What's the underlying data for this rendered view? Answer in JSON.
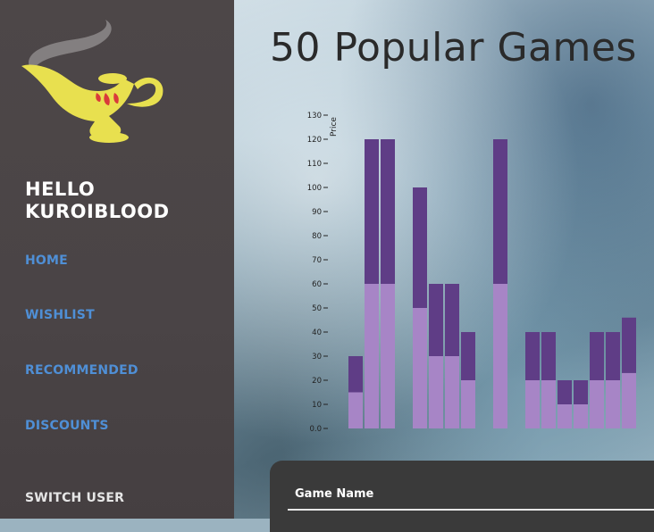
{
  "sidebar": {
    "greeting_line1": "HELLO",
    "greeting_line2": "KUROIBLOOD",
    "nav": [
      {
        "label": "HOME"
      },
      {
        "label": "WISHLIST"
      },
      {
        "label": "RECOMMENDED"
      },
      {
        "label": "DISCOUNTS"
      }
    ],
    "switch_user": "SWITCH USER",
    "link_color": "#4f8fd6"
  },
  "main": {
    "title": "50 Popular Games",
    "table": {
      "columns": [
        "Game Name"
      ]
    }
  },
  "chart_data": {
    "type": "bar",
    "stacked": true,
    "ylabel": "Price",
    "xlabel": "",
    "ylim": [
      0,
      130
    ],
    "yticks": [
      "0.0",
      "10",
      "20",
      "30",
      "40",
      "50",
      "60",
      "70",
      "80",
      "90",
      "100",
      "110",
      "120",
      "130"
    ],
    "colors": {
      "lower": "#a785c6",
      "upper": "#5f3d86"
    },
    "values": [
      30,
      120,
      120,
      null,
      100,
      60,
      60,
      40,
      null,
      120,
      null,
      40,
      40,
      20,
      20,
      40,
      40,
      46
    ]
  }
}
